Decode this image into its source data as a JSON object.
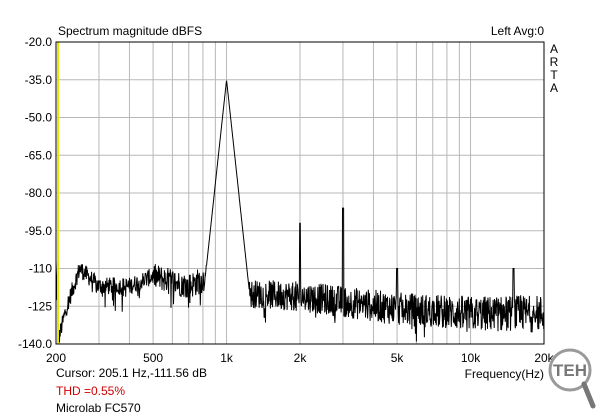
{
  "chart_data": {
    "type": "line",
    "title": "Spectrum magnitude dBFS",
    "top_right_label": "Left Avg:0",
    "vertical_brand": [
      "A",
      "R",
      "T",
      "A"
    ],
    "xlabel": "Frequency(Hz)",
    "x_scale": "log",
    "xlim": [
      200,
      20000
    ],
    "ylim": [
      -140,
      -20
    ],
    "grid": true,
    "y_ticks": [
      -20,
      -35,
      -50,
      -65,
      -80,
      -95,
      -110,
      -125,
      -140
    ],
    "y_tick_labels": [
      "-20.0",
      "-35.0",
      "-50.0",
      "-65.0",
      "-80.0",
      "-95.0",
      "-110",
      "-125",
      "-140.0"
    ],
    "x_tick_values": [
      200,
      500,
      1000,
      2000,
      5000,
      10000,
      20000
    ],
    "x_tick_labels": [
      "200",
      "500",
      "1k",
      "2k",
      "5k",
      "10k",
      "20k"
    ],
    "x_minor_gridlines": [
      300,
      400,
      600,
      700,
      800,
      900,
      3000,
      4000,
      6000,
      7000,
      8000,
      9000
    ],
    "peaks": [
      {
        "freq": 1000,
        "db": -35
      },
      {
        "freq": 2000,
        "db": -92
      },
      {
        "freq": 3000,
        "db": -86
      },
      {
        "freq": 5000,
        "db": -110
      },
      {
        "freq": 15000,
        "db": -110
      }
    ],
    "noise_floor": [
      {
        "freq": 200,
        "db": -108
      },
      {
        "freq": 205,
        "db": -138
      },
      {
        "freq": 220,
        "db": -126
      },
      {
        "freq": 250,
        "db": -110
      },
      {
        "freq": 300,
        "db": -117
      },
      {
        "freq": 400,
        "db": -117
      },
      {
        "freq": 500,
        "db": -113
      },
      {
        "freq": 700,
        "db": -117
      },
      {
        "freq": 900,
        "db": -112
      },
      {
        "freq": 1200,
        "db": -120
      },
      {
        "freq": 2000,
        "db": -121
      },
      {
        "freq": 5000,
        "db": -126
      },
      {
        "freq": 10000,
        "db": -128
      },
      {
        "freq": 20000,
        "db": -128
      }
    ],
    "series": [
      {
        "color": "#000000"
      }
    ],
    "marker_color": "#e6e600"
  },
  "cursor_readout": "Cursor:  205.1 Hz,-111.56 dB",
  "thd": "THD =0.55%",
  "thd_color": "#d00000",
  "device": "Microlab FC570",
  "logo_text": "TEH"
}
